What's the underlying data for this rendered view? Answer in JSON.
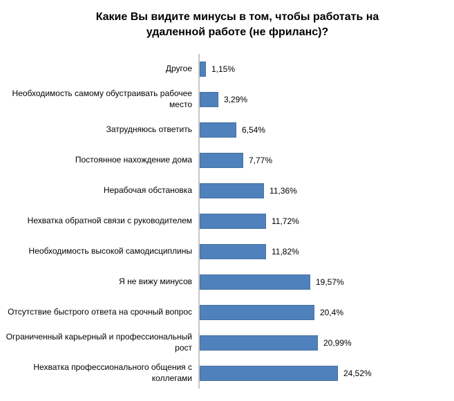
{
  "chart": {
    "title": "Какие Вы видите минусы в том, чтобы работать на удаленной работе (не фриланс)?"
  },
  "chart_data": {
    "type": "bar",
    "orientation": "horizontal",
    "title": "Какие Вы видите минусы в том, чтобы работать на удаленной работе (не фриланс)?",
    "categories": [
      "Другое",
      "Необходимость самому обустраивать рабочее место",
      "Затрудняюсь ответить",
      "Постоянное нахождение дома",
      "Нерабочая обстановка",
      "Нехватка обратной связи с руководителем",
      "Необходимость высокой самодисциплины",
      "Я не вижу минусов",
      "Отсутствие быстрого ответа на срочный вопрос",
      "Ограниченный карьерный и профессиональный рост",
      "Нехватка профессионального общения с коллегами"
    ],
    "values": [
      1.15,
      3.29,
      6.54,
      7.77,
      11.36,
      11.72,
      11.82,
      19.57,
      20.4,
      20.99,
      24.52
    ],
    "value_labels": [
      "1,15%",
      "3,29%",
      "6,54%",
      "7,77%",
      "11,36%",
      "11,72%",
      "11,82%",
      "19,57%",
      "20,4%",
      "20,99%",
      "24,52%"
    ],
    "xlabel": "",
    "ylabel": "",
    "xlim": [
      0,
      25
    ],
    "grid": false,
    "legend": false,
    "bar_color": "#4f81bd",
    "bar_border_color": "#44719f",
    "axis_line_color": "#c6c6c6",
    "text_color": "#000000",
    "title_color": "#000000"
  }
}
